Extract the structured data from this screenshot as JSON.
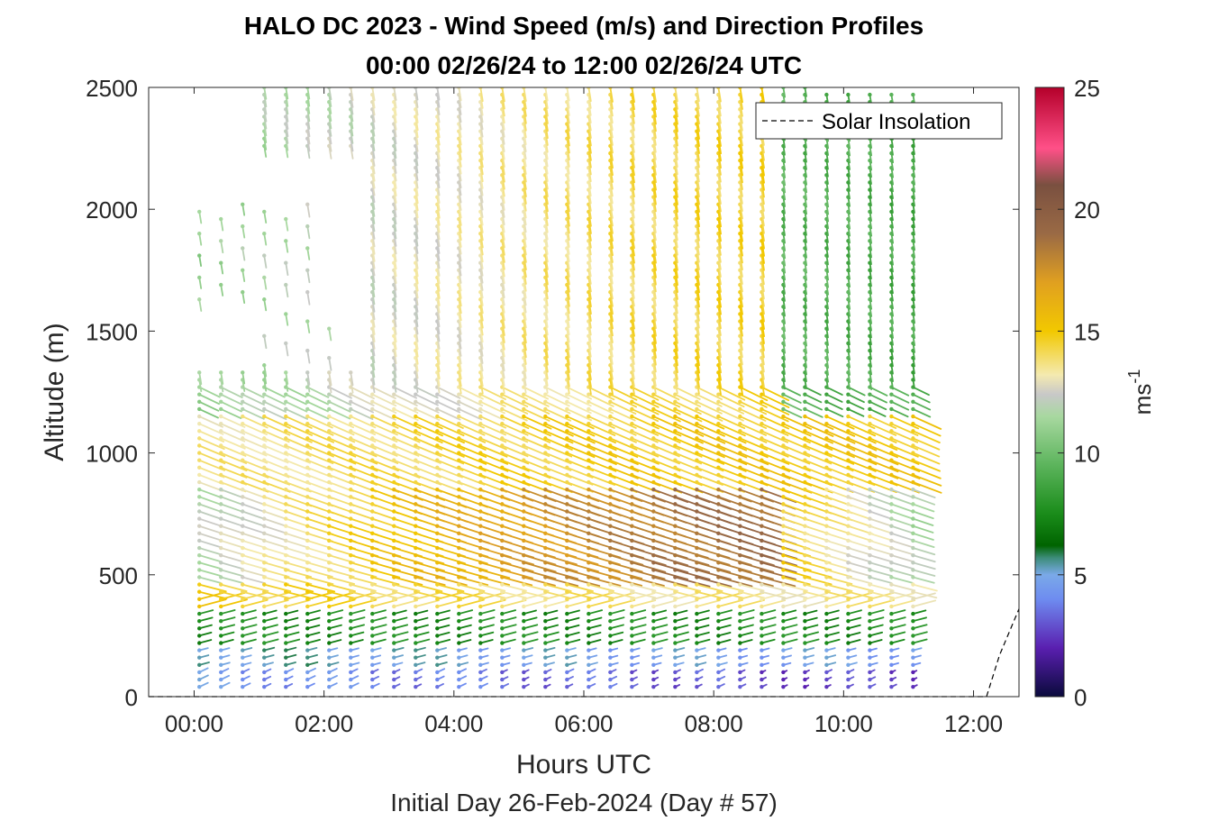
{
  "chart_data": {
    "type": "quiver",
    "title": "HALO DC 2023 - Wind Speed (m/s) and Direction Profiles",
    "subtitle": "00:00 02/26/24 to 12:00 02/26/24  UTC",
    "xlabel": "Hours UTC",
    "ylabel": "Altitude (m)",
    "footer": "Initial Day 26-Feb-2024 (Day # 57)",
    "xlim": [
      -0.7,
      12.7
    ],
    "ylim": [
      0,
      2500
    ],
    "x_ticks": [
      0,
      2,
      4,
      6,
      8,
      10,
      12
    ],
    "x_tick_labels": [
      "00:00",
      "02:00",
      "04:00",
      "06:00",
      "08:00",
      "10:00",
      "12:00"
    ],
    "y_ticks": [
      0,
      500,
      1000,
      1500,
      2000,
      2500
    ],
    "y_tick_labels": [
      "0",
      "500",
      "1000",
      "1500",
      "2000",
      "2500"
    ],
    "legend": {
      "entry": "Solar Insolation",
      "placement": "top-right",
      "line_style": "dashed",
      "color": "#000000"
    },
    "colorbar": {
      "label": "ms-1",
      "label_base": "ms",
      "label_exp": "-1",
      "range": [
        0,
        25
      ],
      "ticks": [
        0,
        5,
        10,
        15,
        20,
        25
      ],
      "tick_labels": [
        "0",
        "5",
        "10",
        "15",
        "20",
        "25"
      ],
      "stops": [
        {
          "v": 0,
          "color": "#0a0a3c"
        },
        {
          "v": 2,
          "color": "#5a1fb0"
        },
        {
          "v": 4,
          "color": "#6e8cf0"
        },
        {
          "v": 5,
          "color": "#7aa9e8"
        },
        {
          "v": 5.7,
          "color": "#3c8c78"
        },
        {
          "v": 6.2,
          "color": "#006400"
        },
        {
          "v": 7.5,
          "color": "#1a8c1a"
        },
        {
          "v": 9.5,
          "color": "#5cb45c"
        },
        {
          "v": 11.5,
          "color": "#a8d8a0"
        },
        {
          "v": 12.4,
          "color": "#c8c8c8"
        },
        {
          "v": 13.2,
          "color": "#f4eab0"
        },
        {
          "v": 15,
          "color": "#f2c800"
        },
        {
          "v": 17,
          "color": "#e0a020"
        },
        {
          "v": 19,
          "color": "#9a6a45"
        },
        {
          "v": 21,
          "color": "#7a5040"
        },
        {
          "v": 22.5,
          "color": "#ff5088"
        },
        {
          "v": 25,
          "color": "#b4002a"
        }
      ]
    },
    "solar_insolation": {
      "x": [
        -0.7,
        12.2,
        12.4,
        12.7
      ],
      "y": [
        0,
        0,
        170,
        360
      ]
    },
    "barbs": {
      "time_start": 0.08,
      "time_end": 11.08,
      "time_step": 0.333,
      "alt_start": 40,
      "alt_step": 30,
      "speed_regimes": [
        {
          "alt_max": 120,
          "speed_early": 4.5,
          "speed_late": 3.0
        },
        {
          "alt_max": 200,
          "speed_early": 5.5,
          "speed_late": 4.6
        },
        {
          "alt_max": 360,
          "speed_early": 7.5,
          "speed_late": 7.5
        },
        {
          "alt_max": 460,
          "speed_early": 14.8,
          "speed_late": 13.5
        },
        {
          "alt_max": 850,
          "speed_early": 12.0,
          "speed_late": 19.0
        },
        {
          "alt_max": 1150,
          "speed_early": 13.5,
          "speed_late": 15.0
        },
        {
          "alt_max": 2500,
          "speed_early": 11.0,
          "speed_late": 14.5
        }
      ],
      "note_late_upper": "Upper levels after 09:00 weaken to ~8-10 m/s"
    }
  }
}
